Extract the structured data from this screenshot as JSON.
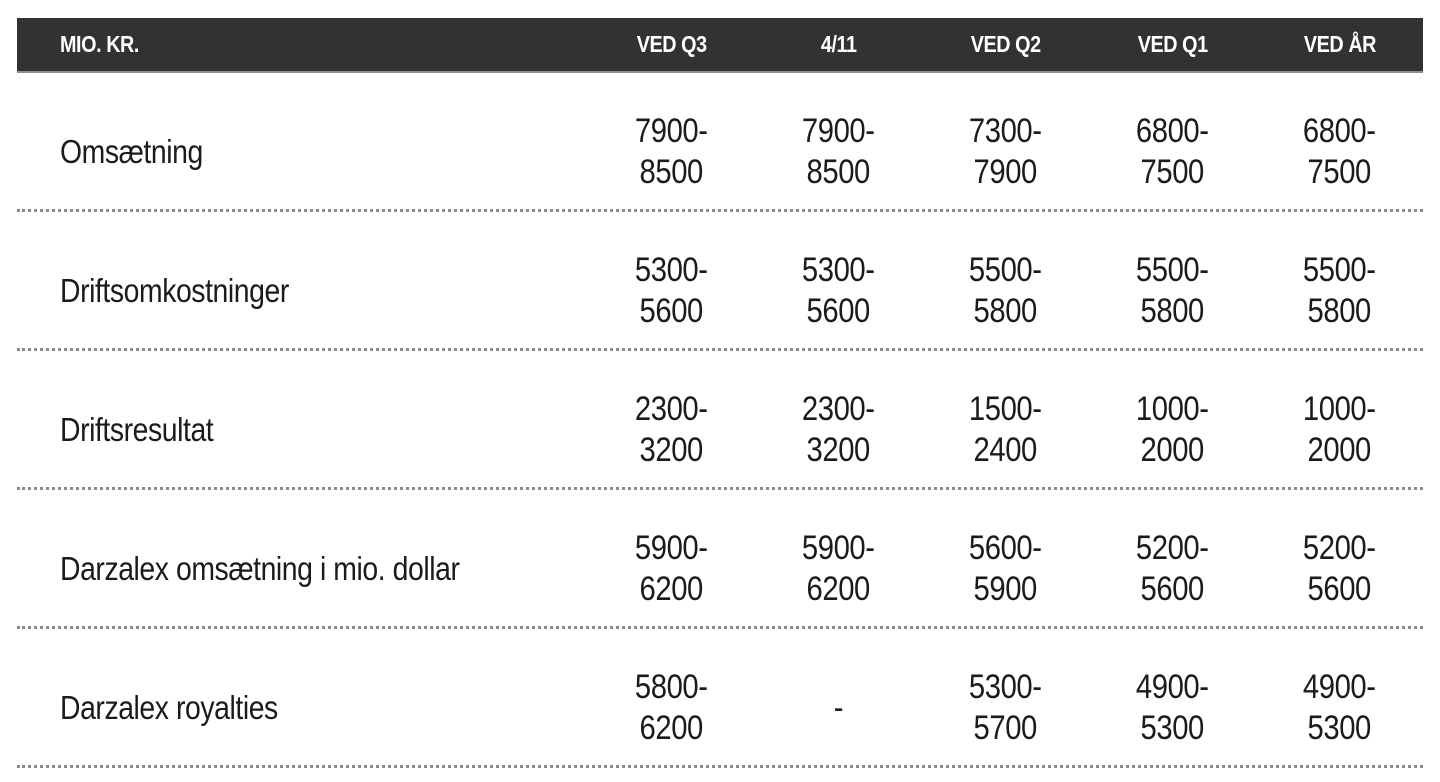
{
  "colors": {
    "header_bg": "#323232",
    "header_text": "#ffffff",
    "body_text": "#1b1b1b",
    "separator_dots": "#8b8b8b",
    "background": "#ffffff"
  },
  "chart_data": {
    "type": "table",
    "unit_label": "MIO. KR.",
    "columns": [
      "VED Q3",
      "4/11",
      "VED Q2",
      "VED Q1",
      "VED ÅR"
    ],
    "rows": [
      {
        "label": "Omsætning",
        "values": [
          "7900-8500",
          "7900-8500",
          "7300-7900",
          "6800-7500",
          "6800-7500"
        ]
      },
      {
        "label": "Driftsomkostninger",
        "values": [
          "5300-5600",
          "5300-5600",
          "5500-5800",
          "5500-5800",
          "5500-5800"
        ]
      },
      {
        "label": "Driftsresultat",
        "values": [
          "2300-3200",
          "2300-3200",
          "1500-2400",
          "1000-2000",
          "1000-2000"
        ]
      },
      {
        "label": "Darzalex omsætning i mio. dollar",
        "values": [
          "5900-6200",
          "5900-6200",
          "5600-5900",
          "5200-5600",
          "5200-5600"
        ]
      },
      {
        "label": "Darzalex royalties",
        "values": [
          "5800-6200",
          "-",
          "5300-5700",
          "4900-5300",
          "4900-5300"
        ]
      }
    ]
  }
}
